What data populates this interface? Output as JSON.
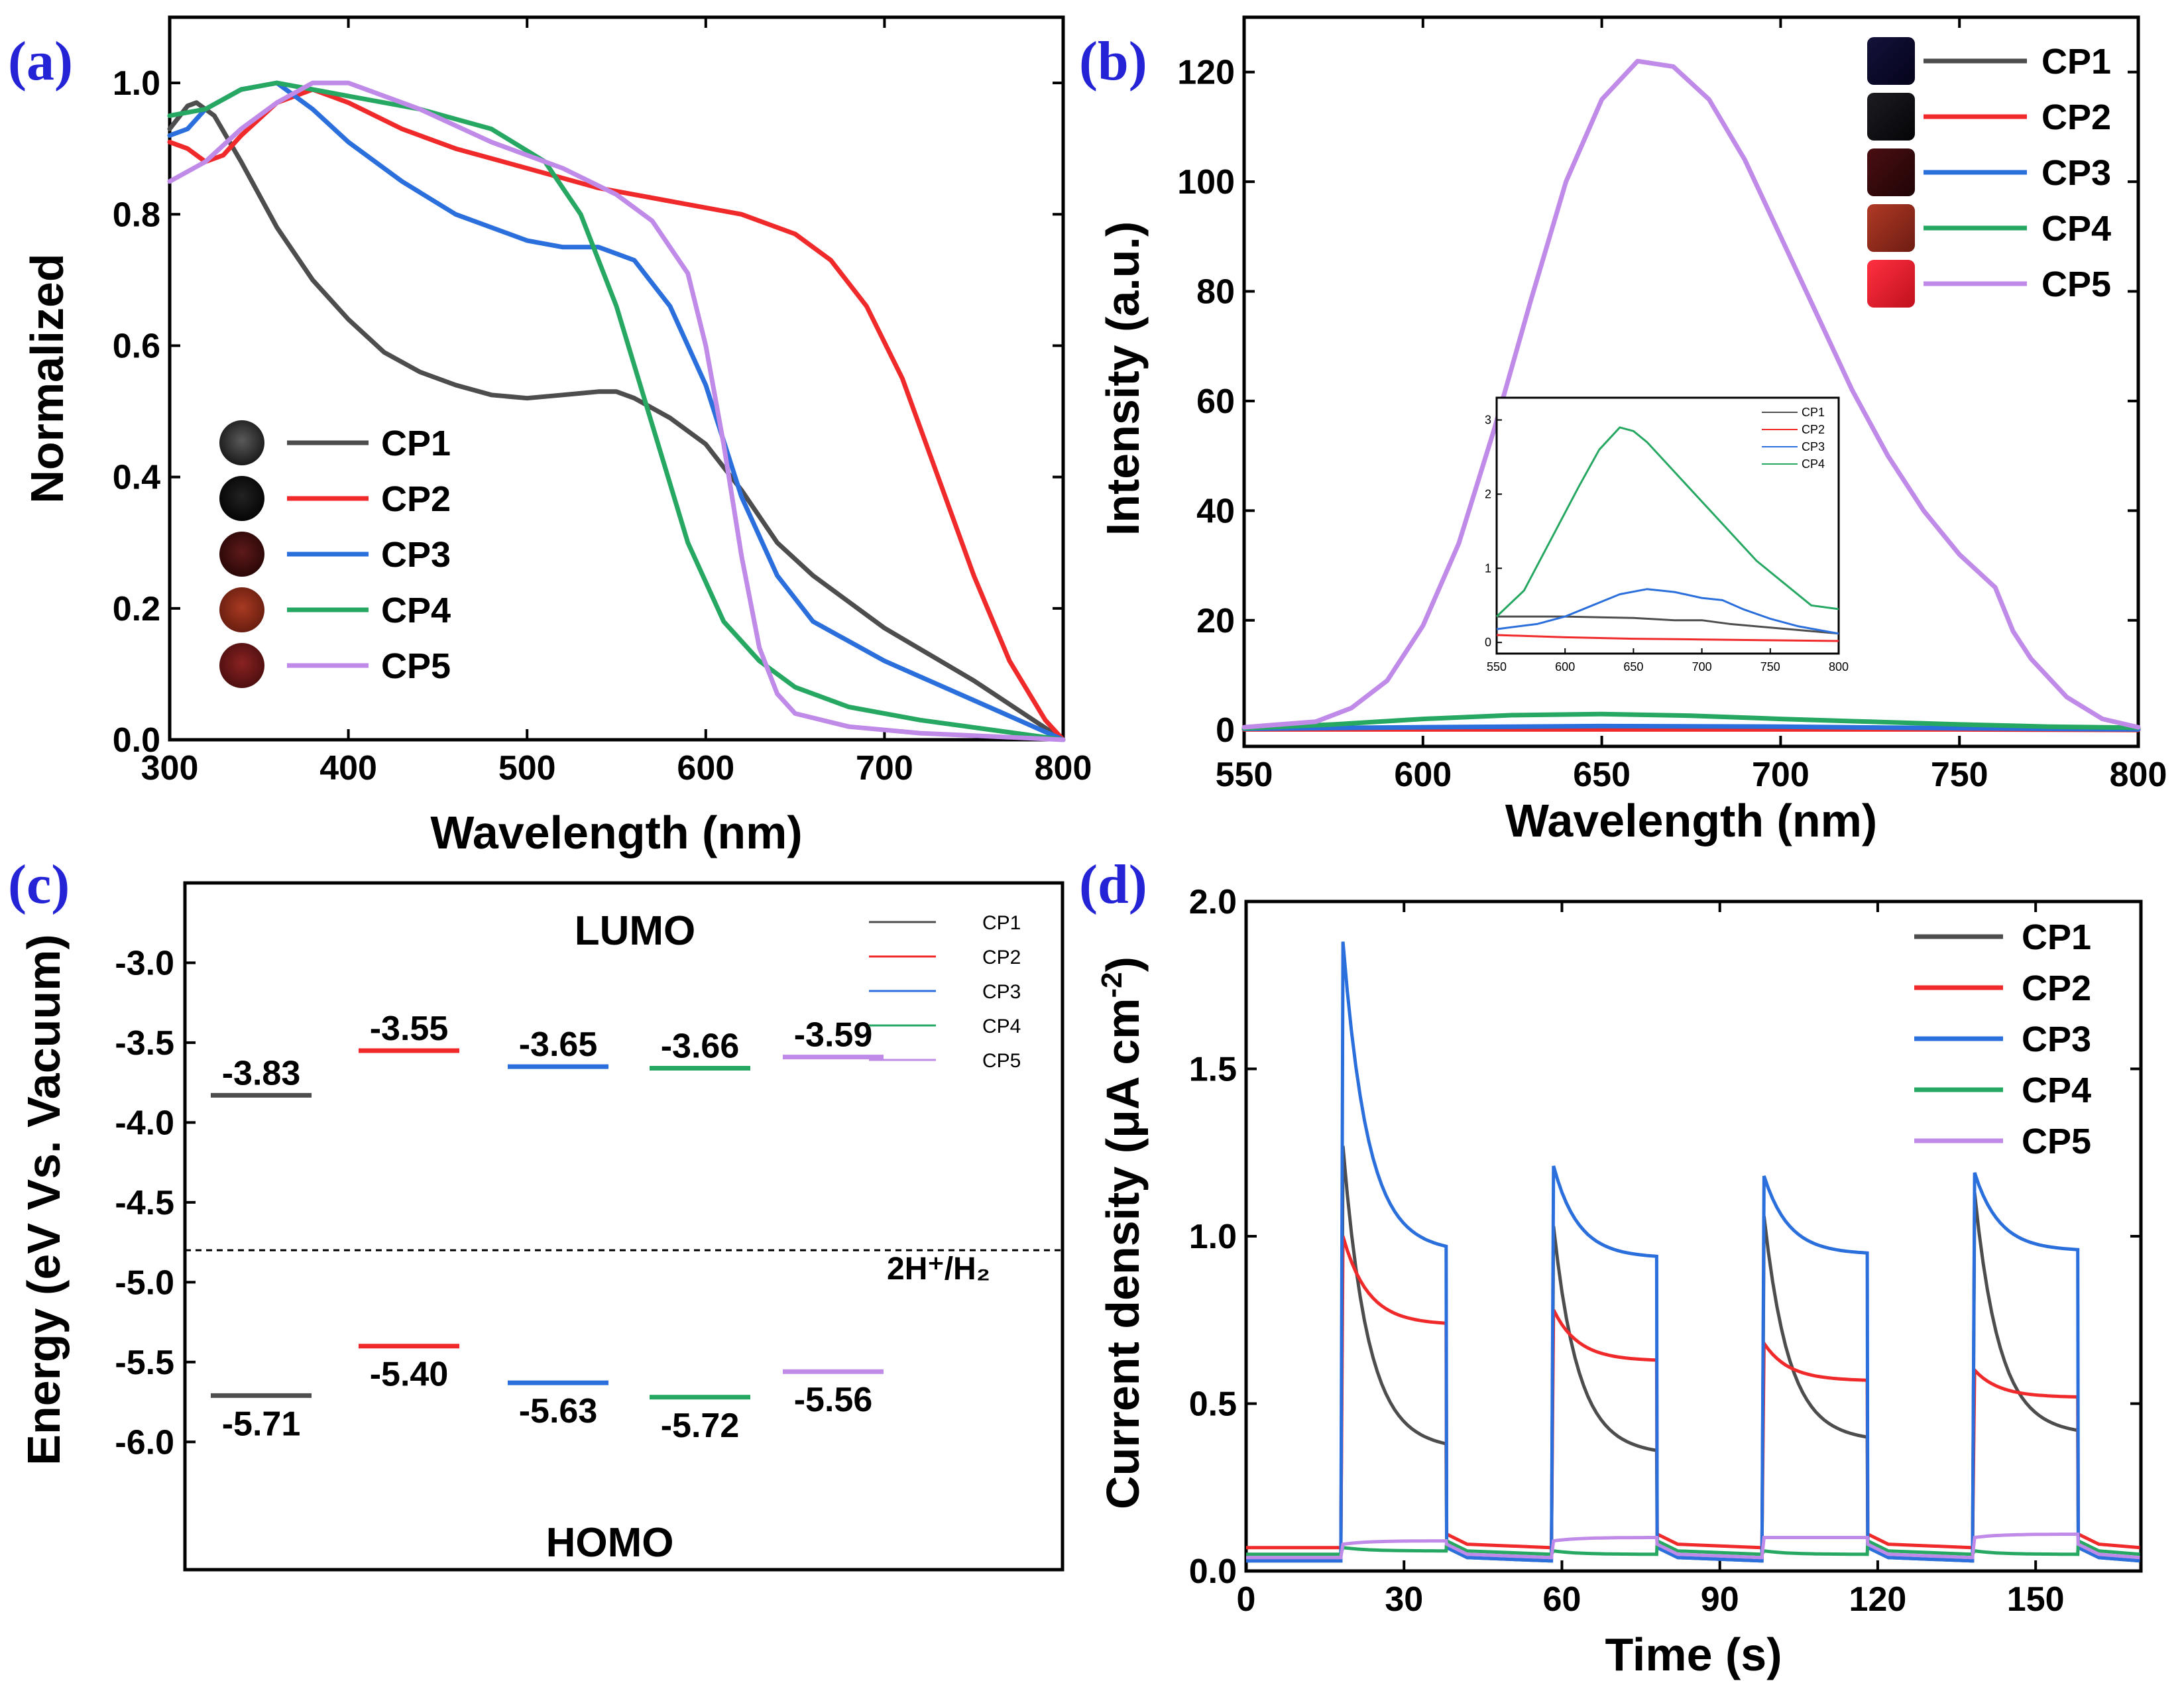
{
  "figure": {
    "colors": {
      "CP1": "#4d4d4d",
      "CP2": "#f02a2a",
      "CP3": "#2a6fdc",
      "CP4": "#27a862",
      "CP5": "#c08ae8"
    }
  },
  "chart_data": [
    {
      "id": "a",
      "panel_label": "(a)",
      "type": "line",
      "title": "",
      "xlabel": "Wavelength (nm)",
      "ylabel": "Normalized",
      "xlim": [
        300,
        800
      ],
      "ylim": [
        0,
        1.1
      ],
      "xticks": [
        300,
        400,
        500,
        600,
        700,
        800
      ],
      "yticks": [
        0.0,
        0.2,
        0.4,
        0.6,
        0.8,
        1.0
      ],
      "xtick_labels": [
        "300",
        "400",
        "500",
        "600",
        "700",
        "800"
      ],
      "ytick_labels": [
        "0.0",
        "0.2",
        "0.4",
        "0.6",
        "0.8",
        "1.0"
      ],
      "legend": {
        "position": "bottom-left",
        "swatches": "sample-photos",
        "labels": [
          "CP1",
          "CP2",
          "CP3",
          "CP4",
          "CP5"
        ]
      },
      "series": [
        {
          "name": "CP1",
          "x": [
            300,
            310,
            315,
            325,
            340,
            360,
            380,
            400,
            420,
            440,
            460,
            480,
            500,
            520,
            540,
            550,
            560,
            580,
            600,
            620,
            640,
            660,
            700,
            750,
            800
          ],
          "y": [
            0.93,
            0.965,
            0.97,
            0.95,
            0.88,
            0.78,
            0.7,
            0.64,
            0.59,
            0.56,
            0.54,
            0.525,
            0.52,
            0.525,
            0.53,
            0.53,
            0.52,
            0.49,
            0.45,
            0.38,
            0.3,
            0.25,
            0.17,
            0.09,
            0.0
          ]
        },
        {
          "name": "CP2",
          "x": [
            300,
            310,
            320,
            330,
            340,
            360,
            380,
            400,
            430,
            460,
            500,
            540,
            580,
            620,
            650,
            670,
            690,
            710,
            730,
            750,
            770,
            790,
            800
          ],
          "y": [
            0.91,
            0.9,
            0.88,
            0.89,
            0.92,
            0.97,
            0.99,
            0.97,
            0.93,
            0.9,
            0.87,
            0.84,
            0.82,
            0.8,
            0.77,
            0.73,
            0.66,
            0.55,
            0.4,
            0.25,
            0.12,
            0.03,
            0.0
          ]
        },
        {
          "name": "CP3",
          "x": [
            300,
            310,
            320,
            340,
            360,
            380,
            400,
            430,
            460,
            500,
            520,
            540,
            560,
            580,
            600,
            620,
            640,
            660,
            700,
            750,
            800
          ],
          "y": [
            0.92,
            0.93,
            0.96,
            0.99,
            1.0,
            0.96,
            0.91,
            0.85,
            0.8,
            0.76,
            0.75,
            0.75,
            0.73,
            0.66,
            0.54,
            0.37,
            0.25,
            0.18,
            0.12,
            0.06,
            0.0
          ]
        },
        {
          "name": "CP4",
          "x": [
            300,
            320,
            340,
            360,
            380,
            400,
            440,
            480,
            510,
            530,
            550,
            570,
            590,
            610,
            630,
            650,
            680,
            720,
            760,
            800
          ],
          "y": [
            0.95,
            0.96,
            0.99,
            1.0,
            0.99,
            0.98,
            0.96,
            0.93,
            0.88,
            0.8,
            0.66,
            0.48,
            0.3,
            0.18,
            0.12,
            0.08,
            0.05,
            0.03,
            0.015,
            0.0
          ]
        },
        {
          "name": "CP5",
          "x": [
            300,
            320,
            340,
            360,
            380,
            400,
            440,
            480,
            520,
            550,
            570,
            590,
            600,
            610,
            620,
            630,
            640,
            650,
            680,
            720,
            760,
            800
          ],
          "y": [
            0.85,
            0.88,
            0.93,
            0.97,
            1.0,
            1.0,
            0.96,
            0.91,
            0.87,
            0.83,
            0.79,
            0.71,
            0.6,
            0.45,
            0.28,
            0.14,
            0.07,
            0.04,
            0.02,
            0.01,
            0.005,
            0.0
          ]
        }
      ]
    },
    {
      "id": "b",
      "panel_label": "(b)",
      "type": "line",
      "title": "",
      "xlabel": "Wavelength (nm)",
      "ylabel": "Intensity (a.u.)",
      "xlim": [
        550,
        800
      ],
      "ylim": [
        -3,
        130
      ],
      "xticks": [
        550,
        600,
        650,
        700,
        750,
        800
      ],
      "yticks": [
        0,
        20,
        40,
        60,
        80,
        100,
        120
      ],
      "xtick_labels": [
        "550",
        "600",
        "650",
        "700",
        "750",
        "800"
      ],
      "ytick_labels": [
        "0",
        "20",
        "40",
        "60",
        "80",
        "100",
        "120"
      ],
      "legend": {
        "position": "top-right",
        "swatches": "sample-photos",
        "labels": [
          "CP1",
          "CP2",
          "CP3",
          "CP4",
          "CP5"
        ]
      },
      "series": [
        {
          "name": "CP1",
          "x": [
            550,
            600,
            650,
            700,
            750,
            800
          ],
          "y": [
            0.4,
            0.4,
            0.4,
            0.3,
            0.2,
            0.1
          ]
        },
        {
          "name": "CP2",
          "x": [
            550,
            600,
            650,
            700,
            750,
            800
          ],
          "y": [
            0.1,
            0.1,
            0.1,
            0.1,
            0.1,
            0.0
          ]
        },
        {
          "name": "CP3",
          "x": [
            550,
            600,
            650,
            700,
            750,
            800
          ],
          "y": [
            0.2,
            0.5,
            0.7,
            0.6,
            0.3,
            0.1
          ]
        },
        {
          "name": "CP4",
          "x": [
            550,
            575,
            600,
            625,
            650,
            675,
            700,
            725,
            750,
            775,
            800
          ],
          "y": [
            0.3,
            1.0,
            2.0,
            2.7,
            2.9,
            2.6,
            2.0,
            1.5,
            1.0,
            0.6,
            0.4
          ]
        },
        {
          "name": "CP5",
          "x": [
            550,
            570,
            580,
            590,
            600,
            610,
            620,
            630,
            640,
            650,
            660,
            670,
            680,
            690,
            700,
            710,
            720,
            730,
            740,
            750,
            755,
            760,
            765,
            770,
            780,
            790,
            800
          ],
          "y": [
            0.5,
            1.5,
            4,
            9,
            19,
            34,
            55,
            78,
            100,
            115,
            122,
            121,
            115,
            104,
            90,
            76,
            62,
            50,
            40,
            32,
            29,
            26,
            18,
            13,
            6,
            2,
            0.5
          ]
        }
      ],
      "inset": {
        "xlim": [
          550,
          800
        ],
        "ylim": [
          -0.15,
          3.3
        ],
        "xticks": [
          550,
          600,
          650,
          700,
          750,
          800
        ],
        "yticks": [
          0,
          1,
          2,
          3
        ],
        "xtick_labels": [
          "550",
          "600",
          "650",
          "700",
          "750",
          "800"
        ],
        "ytick_labels": [
          "0",
          "1",
          "2",
          "3"
        ],
        "legend_labels": [
          "CP1",
          "CP2",
          "CP3",
          "CP4"
        ],
        "series": [
          {
            "name": "CP1",
            "x": [
              550,
              600,
              650,
              680,
              700,
              720,
              750,
              800
            ],
            "y": [
              0.35,
              0.35,
              0.33,
              0.3,
              0.3,
              0.25,
              0.2,
              0.12
            ]
          },
          {
            "name": "CP2",
            "x": [
              550,
              600,
              650,
              700,
              750,
              800
            ],
            "y": [
              0.1,
              0.07,
              0.05,
              0.04,
              0.03,
              0.02
            ]
          },
          {
            "name": "CP3",
            "x": [
              550,
              580,
              600,
              620,
              640,
              660,
              680,
              700,
              715,
              730,
              750,
              770,
              800
            ],
            "y": [
              0.18,
              0.25,
              0.35,
              0.5,
              0.65,
              0.72,
              0.68,
              0.6,
              0.57,
              0.45,
              0.32,
              0.22,
              0.12
            ]
          },
          {
            "name": "CP4",
            "x": [
              550,
              570,
              590,
              610,
              625,
              640,
              650,
              660,
              680,
              700,
              720,
              740,
              760,
              780,
              800
            ],
            "y": [
              0.35,
              0.7,
              1.4,
              2.1,
              2.6,
              2.9,
              2.85,
              2.7,
              2.3,
              1.9,
              1.5,
              1.1,
              0.8,
              0.5,
              0.45
            ]
          }
        ]
      }
    },
    {
      "id": "c",
      "panel_label": "(c)",
      "type": "energy-level diagram",
      "title": "",
      "xlabel": "",
      "ylabel": "Energy (eV Vs. Vacuum)",
      "ylim": [
        -6.8,
        -2.5
      ],
      "yticks": [
        -6.0,
        -5.5,
        -5.0,
        -4.5,
        -4.0,
        -3.5,
        -3.0
      ],
      "ytick_labels": [
        "-6.0",
        "-5.5",
        "-5.0",
        "-4.5",
        "-4.0",
        "-3.5",
        "-3.0"
      ],
      "top_label": "LUMO",
      "bottom_label": "HOMO",
      "reference": {
        "label": "2H⁺/H₂",
        "value": -4.8
      },
      "legend": {
        "position": "top-right",
        "labels": [
          "CP1",
          "CP2",
          "CP3",
          "CP4",
          "CP5"
        ]
      },
      "categories": [
        "CP1",
        "CP2",
        "CP3",
        "CP4",
        "CP5"
      ],
      "lumo": [
        -3.83,
        -3.55,
        -3.65,
        -3.66,
        -3.59
      ],
      "homo": [
        -5.71,
        -5.4,
        -5.63,
        -5.72,
        -5.56
      ],
      "lumo_labels": [
        "-3.83",
        "-3.55",
        "-3.65",
        "-3.66",
        "-3.59"
      ],
      "homo_labels": [
        "-5.71",
        "-5.40",
        "-5.63",
        "-5.72",
        "-5.56"
      ]
    },
    {
      "id": "d",
      "panel_label": "(d)",
      "type": "line",
      "title": "",
      "xlabel": "Time (s)",
      "ylabel": "Current density (μA cm",
      "ylabel_superscript": "-2",
      "ylabel_close": ")",
      "xlim": [
        0,
        170
      ],
      "ylim": [
        0,
        2.0
      ],
      "xticks": [
        0,
        30,
        60,
        90,
        120,
        150
      ],
      "yticks": [
        0.0,
        0.5,
        1.0,
        1.5,
        2.0
      ],
      "xtick_labels": [
        "0",
        "30",
        "60",
        "90",
        "120",
        "150"
      ],
      "ytick_labels": [
        "0.0",
        "0.5",
        "1.0",
        "1.5",
        "2.0"
      ],
      "light_on_times": [
        18,
        58,
        98,
        138
      ],
      "light_off_times": [
        38,
        78,
        118,
        158
      ],
      "legend": {
        "position": "top-right",
        "labels": [
          "CP1",
          "CP2",
          "CP3",
          "CP4",
          "CP5"
        ]
      },
      "series": [
        {
          "name": "CP1",
          "dark": 0.03,
          "cycles": [
            {
              "peak": 1.27,
              "end": 0.38
            },
            {
              "peak": 1.03,
              "end": 0.36
            },
            {
              "peak": 1.06,
              "end": 0.4
            },
            {
              "peak": 1.13,
              "end": 0.42
            }
          ]
        },
        {
          "name": "CP2",
          "dark": 0.07,
          "cycles": [
            {
              "peak": 1.0,
              "end": 0.74
            },
            {
              "peak": 0.78,
              "end": 0.63
            },
            {
              "peak": 0.68,
              "end": 0.57
            },
            {
              "peak": 0.6,
              "end": 0.52
            }
          ]
        },
        {
          "name": "CP3",
          "dark": 0.03,
          "cycles": [
            {
              "peak": 1.88,
              "end": 0.97
            },
            {
              "peak": 1.21,
              "end": 0.94
            },
            {
              "peak": 1.18,
              "end": 0.95
            },
            {
              "peak": 1.19,
              "end": 0.96
            }
          ]
        },
        {
          "name": "CP4",
          "dark": 0.05,
          "cycles": [
            {
              "peak": 0.07,
              "end": 0.06
            },
            {
              "peak": 0.06,
              "end": 0.05
            },
            {
              "peak": 0.06,
              "end": 0.05
            },
            {
              "peak": 0.06,
              "end": 0.05
            }
          ]
        },
        {
          "name": "CP5",
          "dark": 0.04,
          "cycles": [
            {
              "peak": 0.08,
              "end": 0.09
            },
            {
              "peak": 0.09,
              "end": 0.1
            },
            {
              "peak": 0.1,
              "end": 0.1
            },
            {
              "peak": 0.1,
              "end": 0.11
            }
          ]
        }
      ]
    }
  ]
}
